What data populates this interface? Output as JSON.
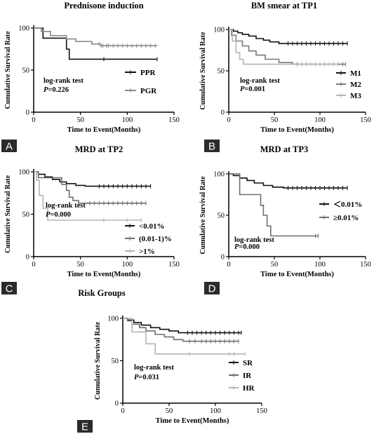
{
  "chart_data": [
    {
      "panel": "A",
      "type": "line",
      "title": "Prednisone induction",
      "xlabel": "Time to Event(Months)",
      "ylabel": "Cumulative Survival Rate",
      "xlim": [
        0,
        150
      ],
      "ylim": [
        0,
        100
      ],
      "xticks": [
        "0",
        "50",
        "100",
        "150"
      ],
      "yticks": [
        "0",
        "50",
        "100"
      ],
      "test_label": "log-rank test",
      "p_label": "P",
      "p_value": "=0.226",
      "legend_position": "bottom-right",
      "series": [
        {
          "name": "PPR",
          "color": "#111111",
          "x": [
            0,
            10,
            10,
            35,
            35,
            38,
            38,
            132
          ],
          "y": [
            100,
            100,
            88,
            88,
            75,
            75,
            63,
            63
          ],
          "censor": [
            75,
            132
          ]
        },
        {
          "name": "PGR",
          "color": "#8a8a8a",
          "x": [
            0,
            8,
            8,
            18,
            18,
            35,
            35,
            45,
            45,
            62,
            62,
            72,
            72,
            132
          ],
          "y": [
            100,
            100,
            96,
            96,
            91,
            91,
            87,
            87,
            84,
            84,
            81,
            81,
            79,
            79
          ],
          "censor": [
            70,
            72,
            74,
            78,
            80,
            85,
            90,
            95,
            100,
            105,
            110,
            115,
            120,
            125,
            130
          ]
        }
      ]
    },
    {
      "panel": "B",
      "type": "line",
      "title": "BM smear at TP1",
      "xlabel": "Time to Event(Months)",
      "ylabel": "Cumulative Survival Rate",
      "xlim": [
        0,
        150
      ],
      "ylim": [
        0,
        100
      ],
      "xticks": [
        "0",
        "50",
        "100",
        "150"
      ],
      "yticks": [
        "0",
        "50",
        "100"
      ],
      "test_label": "log-rank test",
      "p_label": "P",
      "p_value": "=0.001",
      "legend_position": "bottom-right",
      "series": [
        {
          "name": "M1",
          "color": "#111111",
          "x": [
            0,
            5,
            5,
            10,
            10,
            15,
            15,
            22,
            22,
            30,
            30,
            38,
            38,
            45,
            45,
            55,
            55,
            130
          ],
          "y": [
            100,
            100,
            98,
            98,
            96,
            96,
            94,
            94,
            92,
            92,
            89,
            89,
            87,
            87,
            85,
            85,
            83,
            83
          ],
          "censor": [
            65,
            70,
            75,
            80,
            85,
            90,
            95,
            100,
            105,
            110,
            115,
            120,
            125,
            130
          ]
        },
        {
          "name": "M2",
          "color": "#7a7a7a",
          "x": [
            0,
            3,
            3,
            8,
            8,
            15,
            15,
            22,
            22,
            30,
            30,
            40,
            40,
            55,
            55,
            70,
            70,
            128
          ],
          "y": [
            100,
            100,
            93,
            93,
            86,
            86,
            80,
            80,
            74,
            74,
            69,
            69,
            64,
            64,
            60,
            60,
            58,
            58
          ],
          "censor": [
            75,
            80,
            85,
            90,
            95,
            100,
            105,
            110,
            115,
            120,
            125,
            128
          ]
        },
        {
          "name": "M3",
          "color": "#b5b5b5",
          "x": [
            0,
            4,
            4,
            8,
            8,
            12,
            12,
            16,
            16,
            120
          ],
          "y": [
            100,
            100,
            86,
            86,
            72,
            72,
            64,
            64,
            58,
            58
          ],
          "censor": [
            80,
            85,
            90,
            95,
            100,
            105,
            110,
            115,
            120
          ]
        }
      ]
    },
    {
      "panel": "C",
      "type": "line",
      "title": "MRD at TP2",
      "xlabel": "Time to Event(Months)",
      "ylabel": "Cumulative Survival Rate",
      "xlim": [
        0,
        150
      ],
      "ylim": [
        0,
        100
      ],
      "xticks": [
        "0",
        "50",
        "100",
        "150"
      ],
      "yticks": [
        "0",
        "50",
        "100"
      ],
      "test_label": "log-rank test",
      "p_label": "P",
      "p_value": "=0.000",
      "legend_position": "bottom-right",
      "series": [
        {
          "name": "<0.01%",
          "color": "#111111",
          "x": [
            0,
            5,
            5,
            12,
            12,
            20,
            20,
            28,
            28,
            35,
            35,
            45,
            45,
            55,
            55,
            125
          ],
          "y": [
            100,
            100,
            97,
            97,
            94,
            94,
            91,
            91,
            88,
            88,
            86,
            86,
            84,
            84,
            83,
            83
          ],
          "censor": [
            70,
            75,
            80,
            85,
            90,
            95,
            100,
            105,
            110,
            115,
            120,
            125
          ]
        },
        {
          "name": "(0.01-1)%",
          "color": "#6e6e6e",
          "x": [
            0,
            5,
            5,
            30,
            30,
            35,
            35,
            38,
            38,
            42,
            42,
            48,
            48,
            120
          ],
          "y": [
            100,
            100,
            93,
            93,
            85,
            85,
            78,
            78,
            70,
            70,
            66,
            66,
            63,
            63
          ],
          "censor": [
            60,
            65,
            70,
            75,
            80,
            85,
            90,
            95,
            100,
            105,
            110,
            115,
            120
          ]
        },
        {
          "name": ">1%",
          "color": "#b5b5b5",
          "x": [
            0,
            3,
            3,
            6,
            6,
            10,
            10,
            15,
            15,
            115
          ],
          "y": [
            100,
            100,
            90,
            90,
            72,
            72,
            57,
            57,
            43,
            43
          ],
          "censor": [
            75,
            100,
            115
          ]
        }
      ]
    },
    {
      "panel": "D",
      "type": "line",
      "title": "MRD at TP3",
      "xlabel": "Time to Event(Months)",
      "ylabel": "Cumulative Survival Rate",
      "xlim": [
        0,
        150
      ],
      "ylim": [
        0,
        100
      ],
      "xticks": [
        "0",
        "50",
        "100",
        "150"
      ],
      "yticks": [
        "0",
        "50",
        "100"
      ],
      "test_label": "log-rank test",
      "p_label": "P",
      "p_value": "=0.000",
      "legend_position": "right",
      "series": [
        {
          "name": "＜0.01%",
          "color": "#111111",
          "x": [
            0,
            5,
            5,
            12,
            12,
            20,
            20,
            28,
            28,
            38,
            38,
            48,
            48,
            60,
            60,
            130
          ],
          "y": [
            100,
            100,
            98,
            98,
            95,
            95,
            92,
            92,
            89,
            89,
            86,
            86,
            84,
            84,
            83,
            83
          ],
          "censor": [
            65,
            70,
            75,
            80,
            85,
            90,
            95,
            100,
            105,
            110,
            115,
            120,
            125,
            130
          ]
        },
        {
          "name": "≥0.01%",
          "color": "#6e6e6e",
          "x": [
            0,
            12,
            12,
            35,
            35,
            38,
            38,
            42,
            42,
            46,
            46,
            98
          ],
          "y": [
            100,
            100,
            75,
            75,
            62,
            62,
            50,
            50,
            37,
            37,
            25,
            25
          ],
          "censor": [
            95,
            98
          ]
        }
      ]
    },
    {
      "panel": "E",
      "type": "line",
      "title": "Risk Groups",
      "xlabel": "Time to Event(Months)",
      "ylabel": "Cumulative Survival Rate",
      "xlim": [
        0,
        150
      ],
      "ylim": [
        0,
        100
      ],
      "xticks": [
        "0",
        "50",
        "100",
        "150"
      ],
      "yticks": [
        "0",
        "50",
        "100"
      ],
      "test_label": "log-rank test",
      "p_label": "P",
      "p_value": "=0.031",
      "legend_position": "bottom-right",
      "series": [
        {
          "name": "SR",
          "color": "#111111",
          "x": [
            0,
            5,
            5,
            12,
            12,
            20,
            20,
            30,
            30,
            40,
            40,
            50,
            50,
            60,
            60,
            128
          ],
          "y": [
            100,
            100,
            98,
            98,
            95,
            95,
            92,
            92,
            89,
            89,
            87,
            87,
            85,
            85,
            83,
            83
          ],
          "censor": [
            70,
            75,
            80,
            85,
            90,
            95,
            100,
            105,
            110,
            115,
            120,
            125,
            128
          ]
        },
        {
          "name": "IR",
          "color": "#6e6e6e",
          "x": [
            0,
            5,
            5,
            10,
            10,
            18,
            18,
            25,
            25,
            35,
            35,
            45,
            45,
            55,
            55,
            65,
            65,
            125
          ],
          "y": [
            100,
            100,
            97,
            97,
            93,
            93,
            89,
            89,
            85,
            85,
            81,
            81,
            78,
            78,
            75,
            75,
            73,
            73
          ],
          "censor": [
            72,
            78,
            85,
            90,
            95,
            100,
            105,
            110,
            115,
            120,
            125
          ]
        },
        {
          "name": "HR",
          "color": "#b5b5b5",
          "x": [
            0,
            10,
            10,
            25,
            25,
            35,
            35,
            132
          ],
          "y": [
            100,
            100,
            84,
            84,
            70,
            70,
            58,
            58
          ],
          "censor": [
            72,
            115,
            120,
            132
          ]
        }
      ]
    }
  ]
}
